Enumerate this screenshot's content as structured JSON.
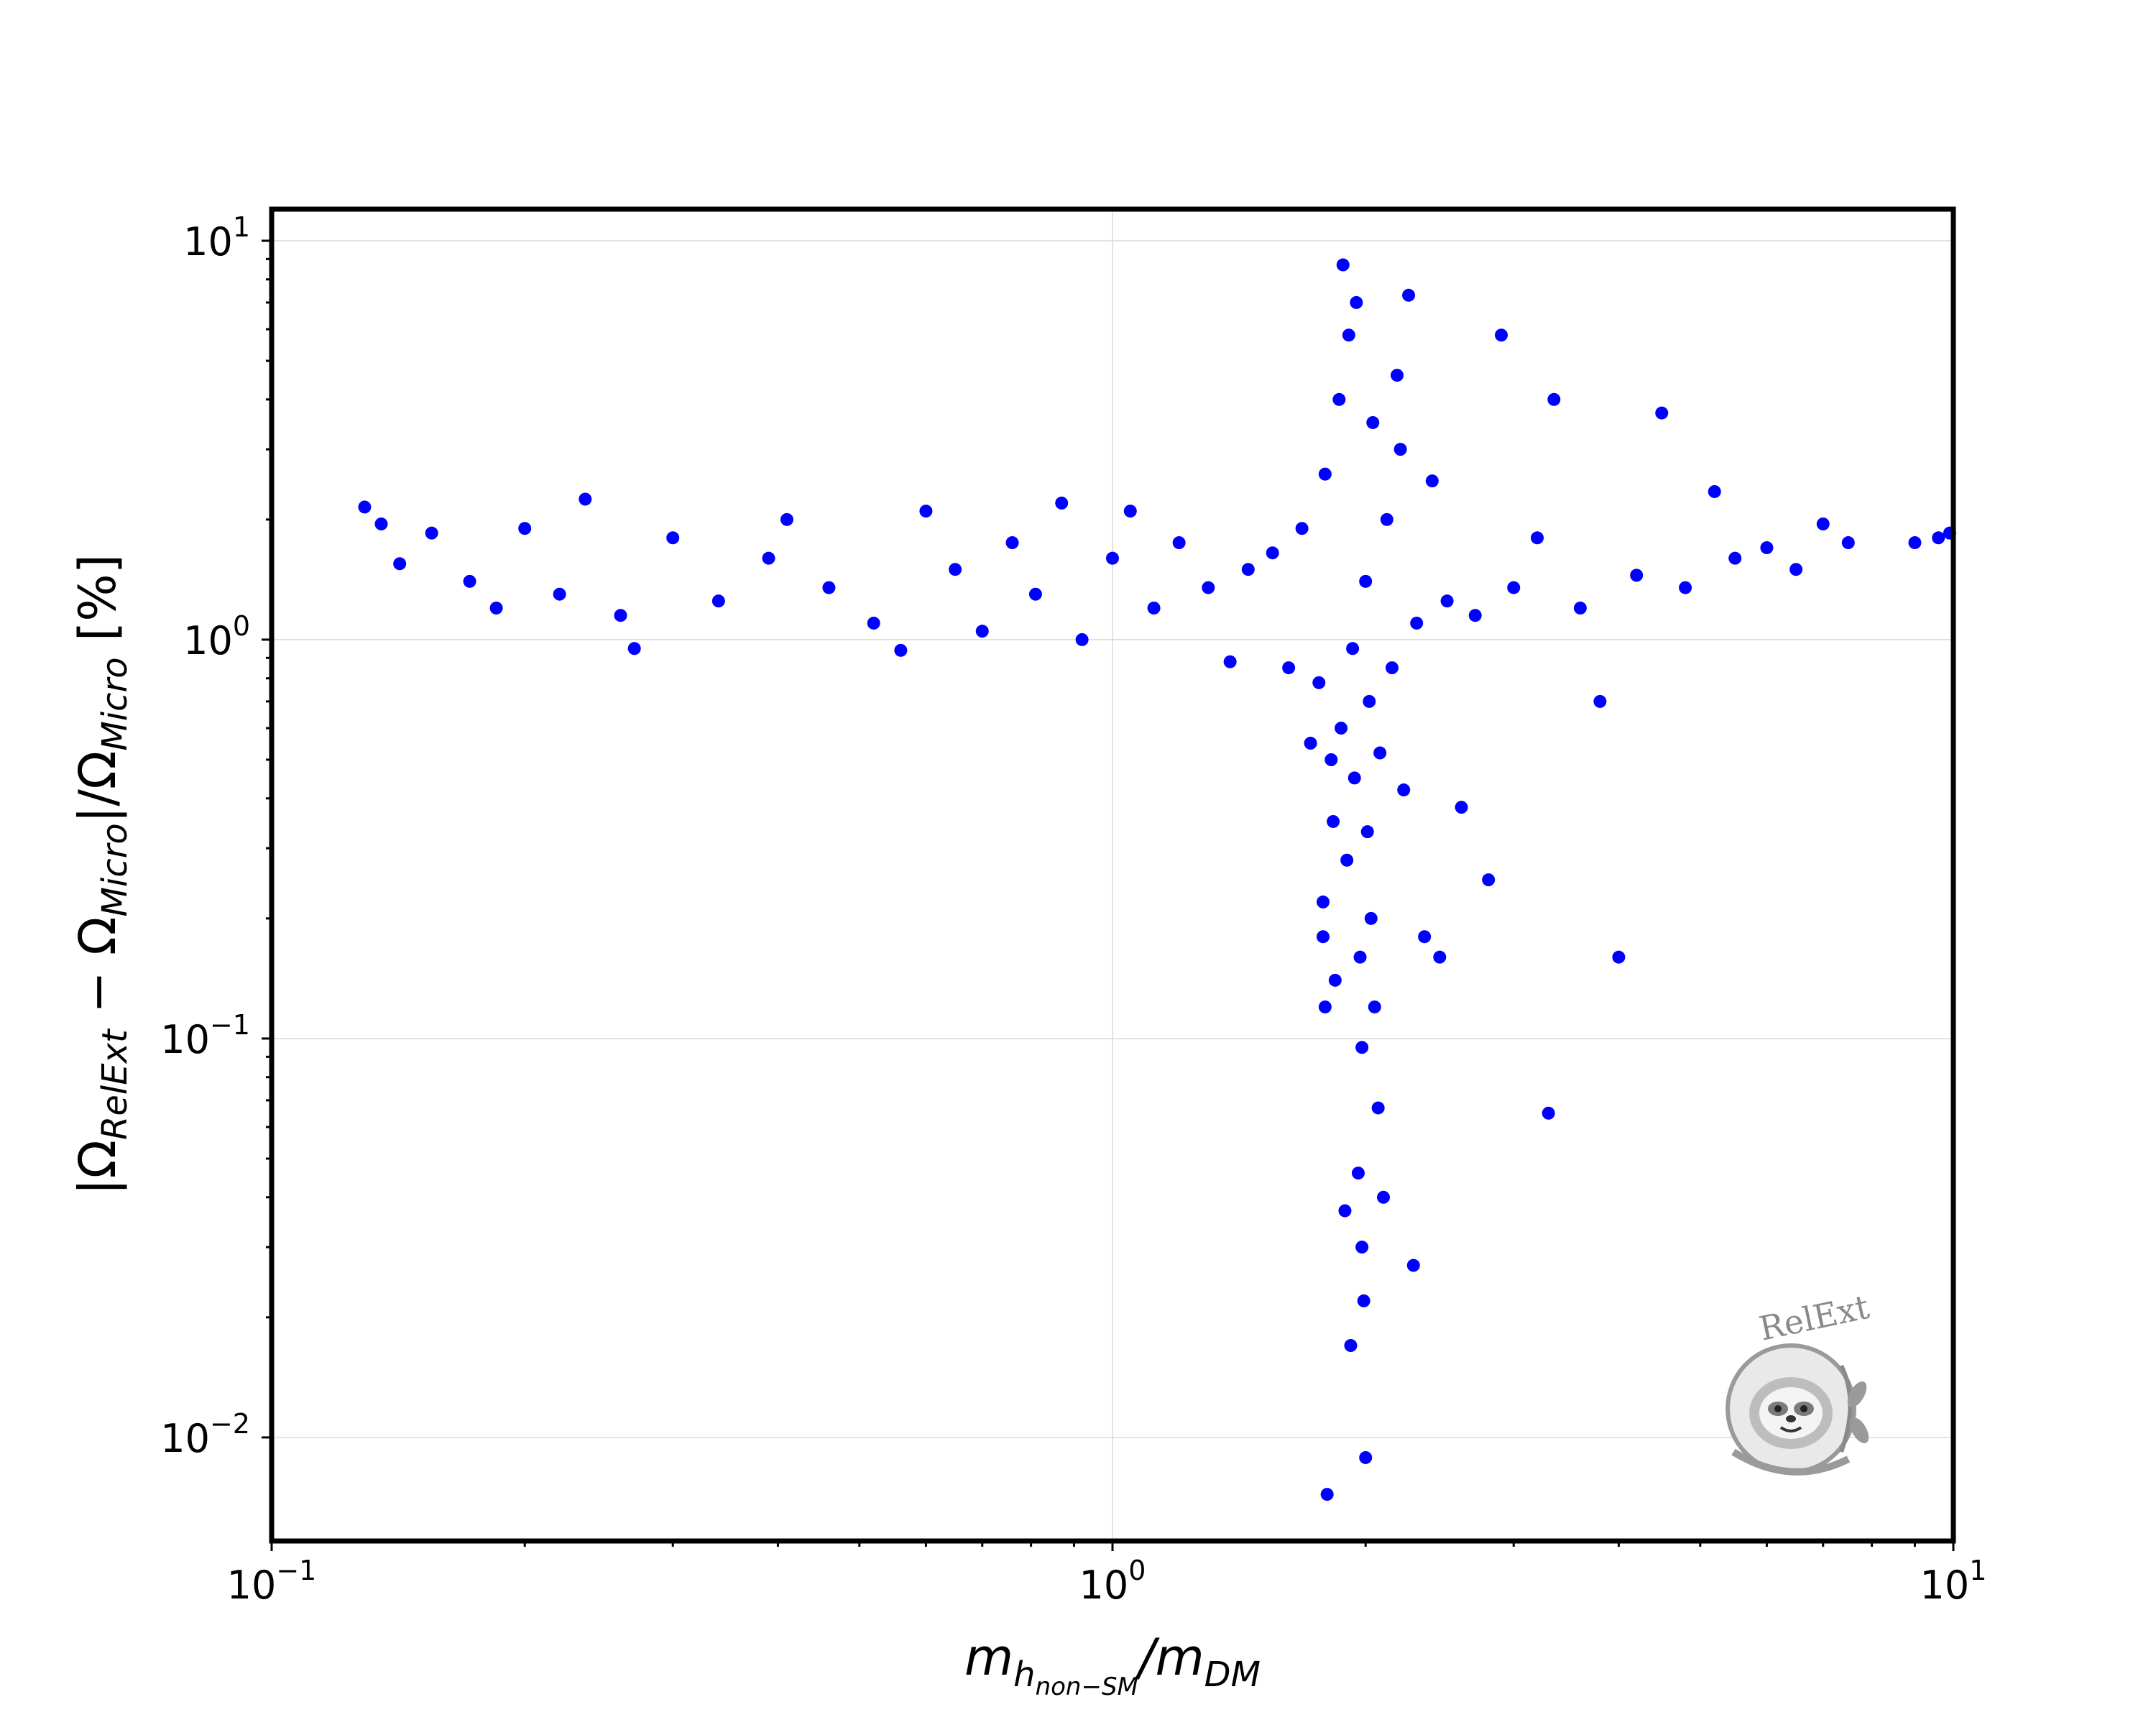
{
  "chart_data": {
    "type": "scatter",
    "title": "",
    "xlabel": "m_{h_{non-SM}}/m_{DM}",
    "ylabel": "|Ω_{RelExt} − Ω_{Micro}|/Ω_{Micro} [%]",
    "xscale": "log",
    "yscale": "log",
    "xlim": [
      0.1,
      10
    ],
    "ylim": [
      0.0055,
      12
    ],
    "grid": true,
    "marker_color": "#0000ff",
    "x_ticks": [
      {
        "base": "10",
        "exp": "−1"
      },
      {
        "base": "10",
        "exp": "0"
      },
      {
        "base": "10",
        "exp": "1"
      }
    ],
    "y_ticks": [
      {
        "base": "10",
        "exp": "−2"
      },
      {
        "base": "10",
        "exp": "−1"
      },
      {
        "base": "10",
        "exp": "0"
      },
      {
        "base": "10",
        "exp": "1"
      }
    ],
    "logo_text": "RelExt",
    "series": [
      {
        "name": "",
        "points": [
          [
            0.129,
            2.15
          ],
          [
            0.135,
            1.95
          ],
          [
            0.142,
            1.55
          ],
          [
            0.155,
            1.85
          ],
          [
            0.172,
            1.4
          ],
          [
            0.185,
            1.2
          ],
          [
            0.2,
            1.9
          ],
          [
            0.22,
            1.3
          ],
          [
            0.236,
            2.25
          ],
          [
            0.26,
            1.15
          ],
          [
            0.27,
            0.95
          ],
          [
            0.3,
            1.8
          ],
          [
            0.34,
            1.25
          ],
          [
            0.39,
            1.6
          ],
          [
            0.41,
            2.0
          ],
          [
            0.46,
            1.35
          ],
          [
            0.52,
            1.1
          ],
          [
            0.56,
            0.94
          ],
          [
            0.6,
            2.1
          ],
          [
            0.65,
            1.5
          ],
          [
            0.7,
            1.05
          ],
          [
            0.76,
            1.75
          ],
          [
            0.81,
            1.3
          ],
          [
            0.87,
            2.2
          ],
          [
            0.92,
            1.0
          ],
          [
            1.0,
            1.6
          ],
          [
            1.05,
            2.1
          ],
          [
            1.12,
            1.2
          ],
          [
            1.2,
            1.75
          ],
          [
            1.3,
            1.35
          ],
          [
            1.38,
            0.88
          ],
          [
            1.45,
            1.5
          ],
          [
            1.55,
            1.65
          ],
          [
            1.62,
            0.85
          ],
          [
            1.68,
            1.9
          ],
          [
            1.72,
            0.55
          ],
          [
            1.76,
            0.78
          ],
          [
            1.78,
            0.22
          ],
          [
            1.78,
            0.18
          ],
          [
            1.79,
            2.6
          ],
          [
            1.79,
            0.12
          ],
          [
            1.8,
            0.0072
          ],
          [
            1.82,
            0.5
          ],
          [
            1.83,
            0.35
          ],
          [
            1.84,
            0.14
          ],
          [
            1.86,
            4.0
          ],
          [
            1.87,
            0.6
          ],
          [
            1.88,
            8.7
          ],
          [
            1.89,
            0.037
          ],
          [
            1.9,
            0.28
          ],
          [
            1.91,
            5.8
          ],
          [
            1.92,
            0.017
          ],
          [
            1.93,
            0.95
          ],
          [
            1.94,
            0.45
          ],
          [
            1.95,
            7.0
          ],
          [
            1.96,
            0.046
          ],
          [
            1.97,
            0.16
          ],
          [
            1.98,
            0.095
          ],
          [
            1.98,
            0.03
          ],
          [
            1.99,
            0.022
          ],
          [
            2.0,
            0.0089
          ],
          [
            2.0,
            1.4
          ],
          [
            2.01,
            0.33
          ],
          [
            2.02,
            0.7
          ],
          [
            2.03,
            0.2
          ],
          [
            2.04,
            3.5
          ],
          [
            2.05,
            0.12
          ],
          [
            2.07,
            0.067
          ],
          [
            2.08,
            0.52
          ],
          [
            2.1,
            0.04
          ],
          [
            2.12,
            2.0
          ],
          [
            2.15,
            0.85
          ],
          [
            2.18,
            4.6
          ],
          [
            2.2,
            3.0
          ],
          [
            2.22,
            0.42
          ],
          [
            2.25,
            7.3
          ],
          [
            2.28,
            0.027
          ],
          [
            2.3,
            1.1
          ],
          [
            2.35,
            0.18
          ],
          [
            2.4,
            2.5
          ],
          [
            2.45,
            0.16
          ],
          [
            2.5,
            1.25
          ],
          [
            2.6,
            0.38
          ],
          [
            2.7,
            1.15
          ],
          [
            2.8,
            0.25
          ],
          [
            2.9,
            5.8
          ],
          [
            3.0,
            1.35
          ],
          [
            3.2,
            1.8
          ],
          [
            3.3,
            0.065
          ],
          [
            3.35,
            4.0
          ],
          [
            3.6,
            1.2
          ],
          [
            3.8,
            0.7
          ],
          [
            4.0,
            0.16
          ],
          [
            4.2,
            1.45
          ],
          [
            4.5,
            3.7
          ],
          [
            4.8,
            1.35
          ],
          [
            5.2,
            2.35
          ],
          [
            5.5,
            1.6
          ],
          [
            6.0,
            1.7
          ],
          [
            6.5,
            1.5
          ],
          [
            7.0,
            1.95
          ],
          [
            7.5,
            1.75
          ],
          [
            9.0,
            1.75
          ],
          [
            9.6,
            1.8
          ],
          [
            9.9,
            1.85
          ]
        ]
      }
    ]
  }
}
